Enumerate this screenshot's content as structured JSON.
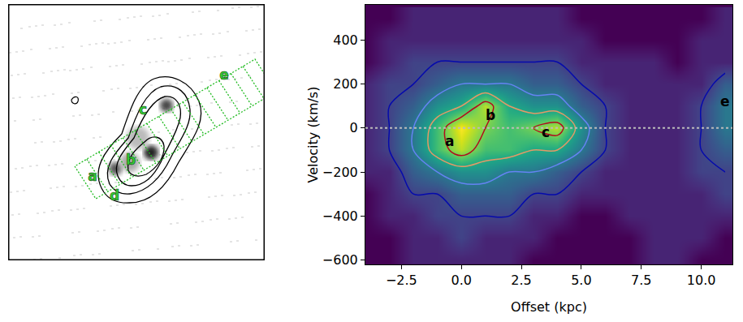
{
  "image_panel": {
    "labels": [
      "a",
      "b",
      "c",
      "d",
      "e"
    ]
  },
  "chart_data": {
    "type": "heatmap",
    "x_label": "Offset (kpc)",
    "y_label": "Velocity (km/s)",
    "x": [
      -4,
      -3,
      -2,
      -1,
      0,
      1,
      2,
      3,
      4,
      5,
      6,
      7,
      8,
      9,
      10,
      11
    ],
    "y": [
      -600,
      -500,
      -400,
      -300,
      -200,
      -100,
      0,
      100,
      200,
      300,
      400,
      500
    ],
    "cells": [
      [
        0,
        0,
        1,
        1,
        1,
        1,
        1,
        0,
        0,
        0,
        0,
        0,
        1,
        1,
        0,
        0
      ],
      [
        0,
        0,
        1,
        1,
        2,
        1,
        1,
        1,
        0,
        0,
        0,
        0,
        1,
        1,
        1,
        0
      ],
      [
        0,
        1,
        1,
        2,
        2,
        2,
        2,
        1,
        1,
        0,
        0,
        1,
        1,
        1,
        1,
        1
      ],
      [
        0,
        1,
        2,
        2,
        3,
        3,
        3,
        2,
        2,
        1,
        1,
        1,
        1,
        1,
        1,
        2
      ],
      [
        1,
        1,
        3,
        4,
        5,
        5,
        4,
        4,
        3,
        2,
        1,
        1,
        1,
        1,
        2,
        2
      ],
      [
        1,
        2,
        4,
        7,
        9,
        7,
        7,
        6,
        6,
        4,
        2,
        1,
        1,
        1,
        2,
        3
      ],
      [
        1,
        2,
        4,
        7,
        10,
        8,
        7,
        8,
        9,
        5,
        2,
        1,
        1,
        1,
        2,
        4
      ],
      [
        1,
        2,
        3,
        5,
        6,
        9,
        6,
        5,
        5,
        3,
        2,
        1,
        1,
        1,
        2,
        4
      ],
      [
        1,
        2,
        2,
        3,
        4,
        4,
        4,
        3,
        3,
        2,
        1,
        1,
        1,
        1,
        1,
        3
      ],
      [
        0,
        1,
        2,
        2,
        2,
        2,
        2,
        2,
        2,
        1,
        1,
        1,
        1,
        0,
        1,
        1
      ],
      [
        0,
        1,
        1,
        1,
        1,
        1,
        1,
        1,
        1,
        1,
        0,
        0,
        0,
        0,
        1,
        1
      ],
      [
        0,
        0,
        1,
        1,
        1,
        1,
        1,
        1,
        1,
        0,
        0,
        0,
        0,
        0,
        0,
        1
      ]
    ],
    "contour_levels": [
      2,
      4,
      6,
      8
    ],
    "reference_line": 0,
    "xlim": [
      -4,
      11.3
    ],
    "ylim": [
      -620,
      560
    ],
    "xticks": [
      {
        "value": -2.5,
        "label": "−2.5"
      },
      {
        "value": 0,
        "label": "0.0"
      },
      {
        "value": 2.5,
        "label": "2.5"
      },
      {
        "value": 5,
        "label": "5.0"
      },
      {
        "value": 7.5,
        "label": "7.5"
      },
      {
        "value": 10,
        "label": "10.0"
      }
    ],
    "yticks": [
      {
        "value": -600,
        "label": "−600"
      },
      {
        "value": -400,
        "label": "−400"
      },
      {
        "value": -200,
        "label": "−200"
      },
      0,
      200,
      400
    ],
    "annotations": [
      {
        "text": "a",
        "x": -0.5,
        "y": -60
      },
      {
        "text": "b",
        "x": 1.2,
        "y": 60
      },
      {
        "text": "c",
        "x": 3.5,
        "y": -20
      },
      {
        "text": "e",
        "x": 11,
        "y": 120
      }
    ],
    "grid": false
  }
}
